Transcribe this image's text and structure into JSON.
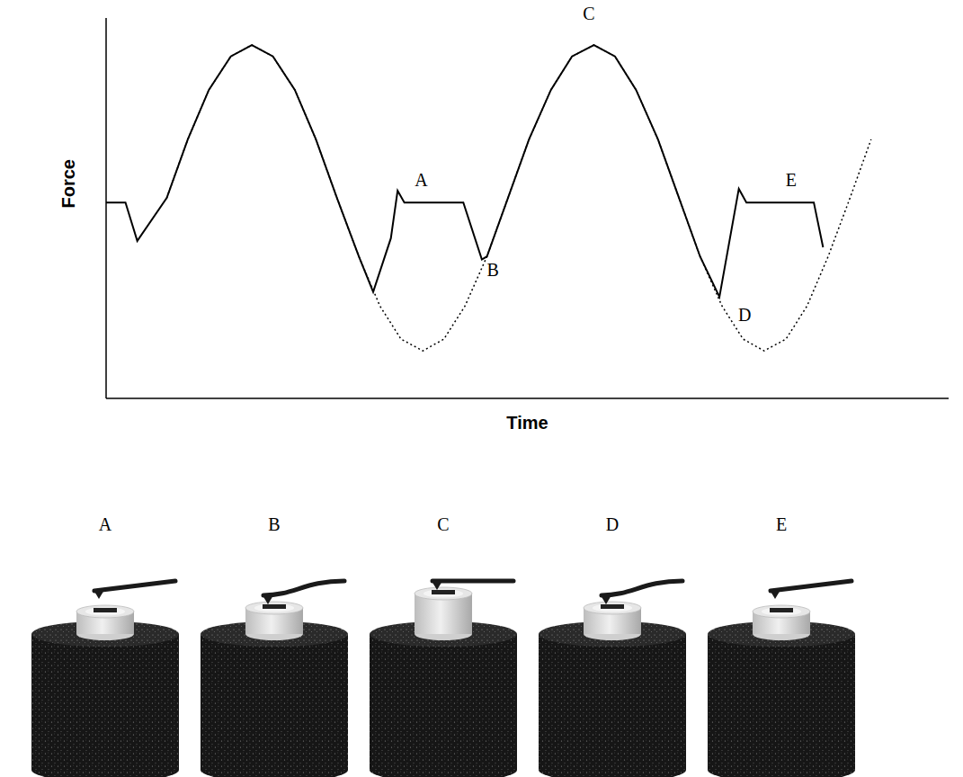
{
  "chart_data": {
    "type": "line",
    "x_label": "Time",
    "y_label": "Force",
    "xlim": [
      0,
      100
    ],
    "ylim": [
      0,
      100
    ],
    "tick_labels": false,
    "grid": false,
    "series": [
      {
        "color": "#000000",
        "line_style": "dotted",
        "x": [
          7.2,
          9.7,
          12.2,
          14.8,
          17.3,
          19.8,
          22.4,
          24.9,
          27.4,
          30.0,
          32.5,
          35.0,
          37.6,
          40.1,
          42.6,
          45.2,
          47.7,
          50.2,
          52.8,
          55.3,
          57.9,
          60.4,
          62.9,
          65.5,
          68.0,
          70.5,
          73.1,
          75.6,
          78.1,
          80.7,
          83.2,
          85.7,
          88.3,
          90.8
        ],
        "values": [
          52.7,
          68.1,
          81.1,
          89.9,
          92.9,
          89.9,
          81.1,
          68.1,
          52.7,
          37.3,
          24.3,
          15.6,
          12.5,
          15.6,
          24.3,
          37.3,
          52.7,
          68.1,
          81.1,
          89.9,
          92.9,
          89.9,
          81.1,
          68.1,
          52.7,
          37.3,
          24.3,
          15.6,
          12.5,
          15.6,
          24.3,
          37.3,
          52.7,
          68.1
        ]
      },
      {
        "color": "#000000",
        "line_style": "solid",
        "x": [
          0,
          2.3,
          3.7,
          7.2,
          9.7,
          12.2,
          14.8,
          17.3,
          19.8,
          22.4,
          24.9,
          27.4,
          30.0,
          31.7,
          33.8,
          34.6,
          35.4,
          42.4,
          44.6,
          45.2,
          47.7,
          50.2,
          52.8,
          55.3,
          57.9,
          60.4,
          62.9,
          65.5,
          68.0,
          70.5,
          72.8,
          75.1,
          76.0,
          84.0,
          85.1
        ],
        "values": [
          51.5,
          51.5,
          41.4,
          52.7,
          68.1,
          81.1,
          89.9,
          92.9,
          89.9,
          81.1,
          68.1,
          52.7,
          37.3,
          28.0,
          42.1,
          54.6,
          51.5,
          51.5,
          36.5,
          37.3,
          52.7,
          68.1,
          81.1,
          89.9,
          92.9,
          89.9,
          81.1,
          68.1,
          52.7,
          37.3,
          26.7,
          55.1,
          51.5,
          51.5,
          39.7
        ]
      }
    ],
    "annotations": [
      {
        "text": "A",
        "x": 37.4,
        "y": 57.4
      },
      {
        "text": "B",
        "x": 45.9,
        "y": 33.8
      },
      {
        "text": "C",
        "x": 57.3,
        "y": 101.2
      },
      {
        "text": "D",
        "x": 75.8,
        "y": 22.0
      },
      {
        "text": "E",
        "x": 81.3,
        "y": 57.4
      }
    ]
  },
  "illustrations": {
    "labels": [
      "A",
      "B",
      "C",
      "D",
      "E"
    ]
  }
}
